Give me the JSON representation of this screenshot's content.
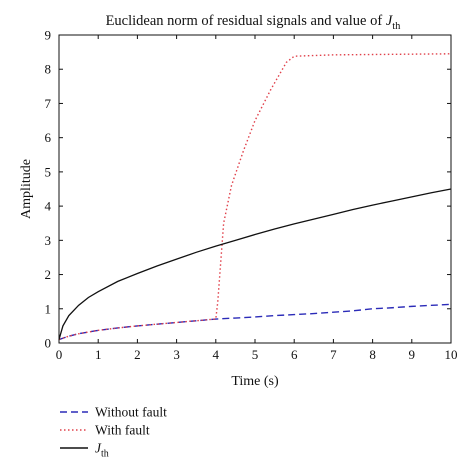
{
  "chart_data": {
    "type": "line",
    "title": {
      "text": "Euclidean norm of residual signals and value of ",
      "symbol": "J",
      "subscript": "th"
    },
    "xlabel": "Time (s)",
    "ylabel": "Amplitude",
    "xlim": [
      0,
      10
    ],
    "ylim": [
      0,
      9
    ],
    "xticks": [
      0,
      1,
      2,
      3,
      4,
      5,
      6,
      7,
      8,
      9,
      10
    ],
    "yticks": [
      0,
      1,
      2,
      3,
      4,
      5,
      6,
      7,
      8,
      9
    ],
    "grid": false,
    "legend_placement": "bottom-left, below axes",
    "series": [
      {
        "name": "Without fault",
        "style": "dashed",
        "color": "#2b2bb8",
        "x": [
          0,
          0.25,
          0.5,
          1,
          1.5,
          2,
          2.5,
          3,
          3.5,
          4,
          4.5,
          5,
          5.5,
          6,
          6.5,
          7,
          7.5,
          8,
          8.5,
          9,
          9.5,
          10
        ],
        "y": [
          0.1,
          0.2,
          0.27,
          0.37,
          0.44,
          0.5,
          0.55,
          0.6,
          0.65,
          0.7,
          0.73,
          0.76,
          0.8,
          0.83,
          0.86,
          0.9,
          0.94,
          1.0,
          1.03,
          1.07,
          1.1,
          1.13
        ]
      },
      {
        "name": "With fault",
        "style": "dotted",
        "color": "#e0404a",
        "x": [
          0,
          0.25,
          0.5,
          1,
          1.5,
          2,
          2.5,
          3,
          3.5,
          4,
          4.05,
          4.2,
          4.4,
          4.7,
          5,
          5.4,
          5.8,
          6,
          6.5,
          7,
          8,
          9,
          10
        ],
        "y": [
          0.1,
          0.2,
          0.27,
          0.37,
          0.44,
          0.5,
          0.55,
          0.6,
          0.65,
          0.7,
          1.2,
          3.5,
          4.6,
          5.6,
          6.5,
          7.4,
          8.2,
          8.38,
          8.4,
          8.42,
          8.43,
          8.44,
          8.45
        ]
      },
      {
        "name": "J",
        "name_subscript": "th",
        "style": "solid",
        "color": "#111111",
        "x": [
          0,
          0.05,
          0.1,
          0.25,
          0.5,
          0.75,
          1,
          1.5,
          2,
          2.5,
          3,
          3.5,
          4,
          4.5,
          5,
          5.5,
          6,
          6.5,
          7,
          7.5,
          8,
          8.5,
          9,
          9.5,
          10
        ],
        "y": [
          0.1,
          0.3,
          0.5,
          0.8,
          1.1,
          1.33,
          1.5,
          1.8,
          2.03,
          2.25,
          2.45,
          2.65,
          2.83,
          3.0,
          3.17,
          3.33,
          3.48,
          3.62,
          3.76,
          3.9,
          4.03,
          4.15,
          4.27,
          4.39,
          4.5
        ]
      }
    ]
  }
}
